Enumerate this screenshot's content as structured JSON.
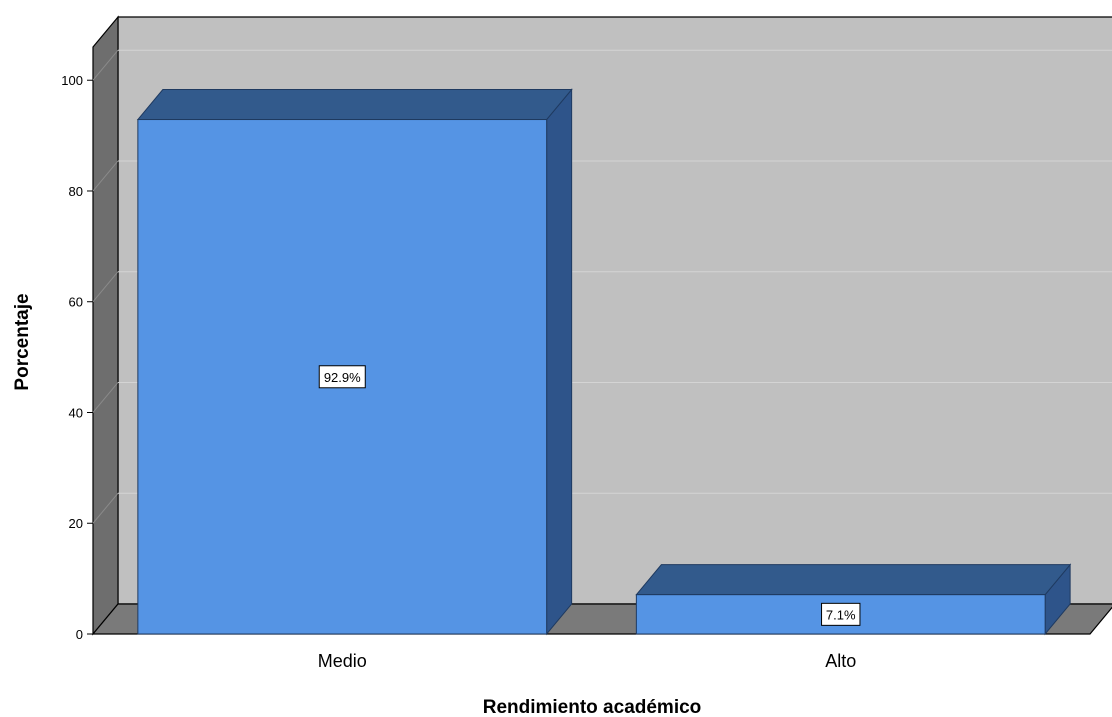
{
  "chart_data": {
    "type": "bar",
    "style": "3d",
    "categories": [
      "Medio",
      "Alto"
    ],
    "values": [
      92.9,
      7.1
    ],
    "data_labels": [
      "92.9%",
      "7.1%"
    ],
    "title": "",
    "xlabel": "Rendimiento académico",
    "ylabel": "Porcentaje",
    "ylim": [
      0,
      106
    ],
    "yticks": [
      0,
      20,
      40,
      60,
      80,
      100
    ],
    "grid": true,
    "legend": "none",
    "colors": {
      "bar_front": "#5594e4",
      "bar_top": "#325a8c",
      "bar_side": "#2e548a",
      "wall": "#c0c0c0",
      "wall_side": "#6e6e6e",
      "floor": "#7a7a7a",
      "gridline": "#d4d4d4"
    }
  }
}
